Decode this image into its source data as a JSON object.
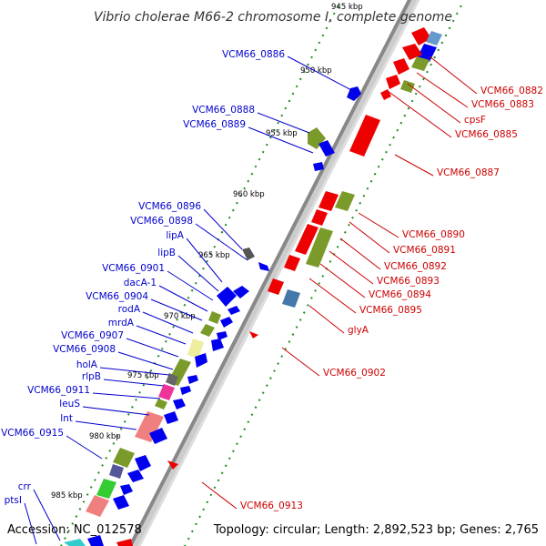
{
  "title": "Vibrio cholerae M66-2 chromosome I, complete genome",
  "footer": {
    "accession": "Accession: NC_012578",
    "topology": "Topology: circular; Length: 2,892,523 bp; Genes: 2,765"
  },
  "colors": {
    "forward_label": "#0000cc",
    "reverse_label": "#cc0000",
    "tick": "#228822",
    "backbone": "#888888"
  },
  "scale_ticks": [
    "945 kbp",
    "950 kbp",
    "955 kbp",
    "960 kbp",
    "965 kbp",
    "970 kbp",
    "975 kbp",
    "980 kbp",
    "985 kbp"
  ],
  "forward_genes": [
    "VCM66_0886",
    "VCM66_0888",
    "VCM66_0889",
    "VCM66_0896",
    "VCM66_0898",
    "lipA",
    "lipB",
    "VCM66_0901",
    "dacA-1",
    "VCM66_0904",
    "rodA",
    "mrdA",
    "VCM66_0907",
    "VCM66_0908",
    "holA",
    "rlpB",
    "VCM66_0911",
    "leuS",
    "lnt",
    "VCM66_0915",
    "crr",
    "ptsI"
  ],
  "reverse_genes": [
    "VCM66_0882",
    "VCM66_0883",
    "cpsF",
    "VCM66_0885",
    "VCM66_0887",
    "VCM66_0890",
    "VCM66_0891",
    "VCM66_0892",
    "VCM66_0893",
    "VCM66_0894",
    "VCM66_0895",
    "glyA",
    "VCM66_0902",
    "VCM66_0913"
  ]
}
